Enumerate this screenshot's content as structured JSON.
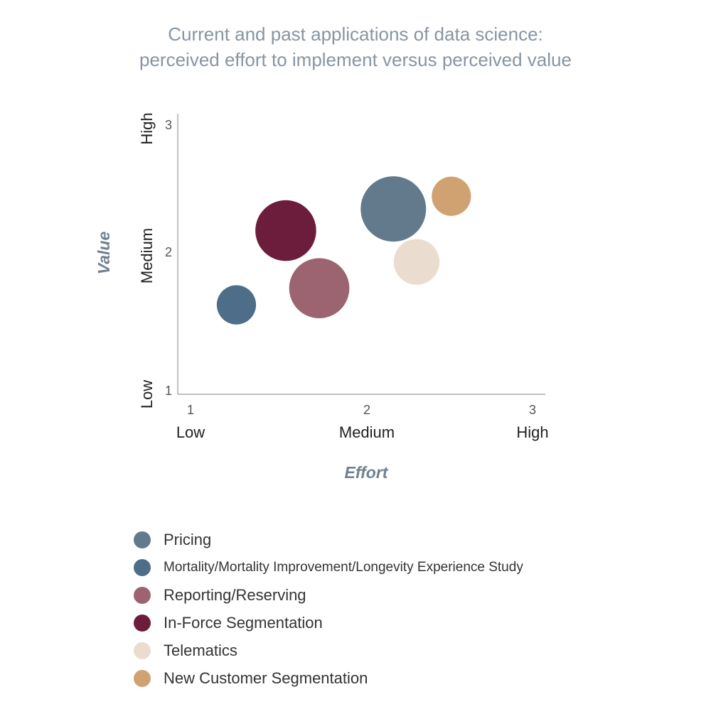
{
  "chart_data": {
    "type": "scatter",
    "title": "Current and past applications of data science:",
    "subtitle": "perceived effort to implement versus perceived value",
    "xlabel": "Effort",
    "ylabel": "Value",
    "xlim": [
      1,
      3
    ],
    "ylim": [
      1,
      3
    ],
    "x_ticks": [
      {
        "value": 1,
        "num": "1",
        "word": "Low"
      },
      {
        "value": 2,
        "num": "2",
        "word": "Medium"
      },
      {
        "value": 3,
        "num": "3",
        "word": "High"
      }
    ],
    "y_ticks": [
      {
        "value": 1,
        "num": "1",
        "word": "Low"
      },
      {
        "value": 2,
        "num": "2",
        "word": "Medium"
      },
      {
        "value": 3,
        "num": "3",
        "word": "High"
      }
    ],
    "grid": false,
    "legend_position": "bottom",
    "series": [
      {
        "name": "Pricing",
        "x": 2.16,
        "y": 2.34,
        "size": 1.0,
        "color": "#637a8c"
      },
      {
        "name": "Mortality/Mortality Improvement/Longevity Experience Study",
        "x": 1.26,
        "y": 1.62,
        "size": 0.6,
        "color": "#4d6d88"
      },
      {
        "name": "Reporting/Reserving",
        "x": 1.73,
        "y": 1.74,
        "size": 0.92,
        "color": "#9b6470"
      },
      {
        "name": "In-Force Segmentation",
        "x": 1.54,
        "y": 2.17,
        "size": 0.93,
        "color": "#6d1d3c"
      },
      {
        "name": "Telematics",
        "x": 2.3,
        "y": 1.93,
        "size": 0.7,
        "color": "#eaddd0"
      },
      {
        "name": "New Customer Segmentation",
        "x": 2.51,
        "y": 2.44,
        "size": 0.6,
        "color": "#d0a272"
      }
    ]
  }
}
